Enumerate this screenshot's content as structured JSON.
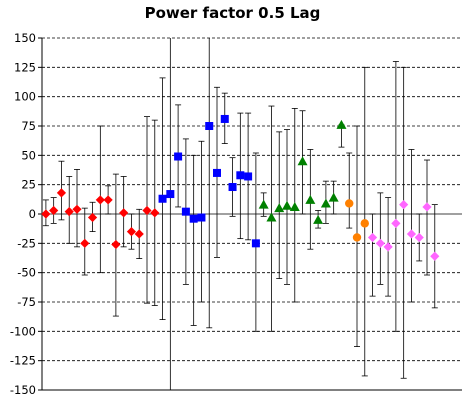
{
  "chart_data": {
    "type": "scatter",
    "title": "Power factor 0.5 Lag",
    "xlabel": "",
    "ylabel": "",
    "ylim": [
      -150,
      150
    ],
    "yticks": [
      150,
      125,
      100,
      75,
      50,
      25,
      0,
      -25,
      -50,
      -75,
      -100,
      -125,
      -150
    ],
    "xlim": [
      0.5,
      54.5
    ],
    "grid": {
      "horizontal": true,
      "style": "dashed",
      "color": "#000000"
    },
    "series": [
      {
        "marker": "diamond",
        "color": "#ff0000",
        "points": [
          {
            "x": 1,
            "y": 0,
            "lo": -10,
            "hi": 12
          },
          {
            "x": 2,
            "y": 3,
            "lo": -8,
            "hi": 14
          },
          {
            "x": 3,
            "y": 18,
            "lo": -5,
            "hi": 45
          },
          {
            "x": 4,
            "y": 2,
            "lo": -25,
            "hi": 32
          },
          {
            "x": 5,
            "y": 4,
            "lo": -28,
            "hi": 38
          },
          {
            "x": 6,
            "y": -25,
            "lo": -52,
            "hi": 5
          },
          {
            "x": 7,
            "y": -3,
            "lo": -15,
            "hi": 10
          },
          {
            "x": 8,
            "y": 12,
            "lo": -50,
            "hi": 75
          },
          {
            "x": 9,
            "y": 12,
            "lo": 0,
            "hi": 24
          },
          {
            "x": 10,
            "y": -26,
            "lo": -87,
            "hi": 34
          },
          {
            "x": 11,
            "y": 1,
            "lo": -28,
            "hi": 32
          },
          {
            "x": 12,
            "y": -15,
            "lo": -30,
            "hi": 0
          },
          {
            "x": 13,
            "y": -17,
            "lo": -38,
            "hi": 4
          },
          {
            "x": 14,
            "y": 3,
            "lo": -76,
            "hi": 83
          },
          {
            "x": 15,
            "y": 1,
            "lo": -78,
            "hi": 80
          }
        ]
      },
      {
        "marker": "square",
        "color": "#0000ff",
        "points": [
          {
            "x": 16,
            "y": 13,
            "lo": -90,
            "hi": 116
          },
          {
            "x": 17,
            "y": 17,
            "lo": -150,
            "hi": 150
          },
          {
            "x": 18,
            "y": 49,
            "lo": 6,
            "hi": 93
          },
          {
            "x": 19,
            "y": 2,
            "lo": -60,
            "hi": 64
          },
          {
            "x": 20,
            "y": -4,
            "lo": -95,
            "hi": 50
          },
          {
            "x": 21,
            "y": -3,
            "lo": -75,
            "hi": 62
          },
          {
            "x": 22,
            "y": 75,
            "lo": -97,
            "hi": 150
          },
          {
            "x": 23,
            "y": 35,
            "lo": -37,
            "hi": 108
          },
          {
            "x": 24,
            "y": 81,
            "lo": 60,
            "hi": 103
          },
          {
            "x": 25,
            "y": 23,
            "lo": -2,
            "hi": 48
          },
          {
            "x": 26,
            "y": 33,
            "lo": -21,
            "hi": 86
          },
          {
            "x": 27,
            "y": 32,
            "lo": -22,
            "hi": 86
          },
          {
            "x": 28,
            "y": -25,
            "lo": -100,
            "hi": 52
          }
        ]
      },
      {
        "marker": "triangle",
        "color": "#008000",
        "points": [
          {
            "x": 29,
            "y": 8,
            "lo": -2,
            "hi": 18
          },
          {
            "x": 30,
            "y": -3,
            "lo": -100,
            "hi": 92
          },
          {
            "x": 31,
            "y": 5,
            "lo": -55,
            "hi": 70
          },
          {
            "x": 32,
            "y": 7,
            "lo": -60,
            "hi": 72
          },
          {
            "x": 33,
            "y": 6,
            "lo": -75,
            "hi": 90
          },
          {
            "x": 34,
            "y": 45,
            "lo": 0,
            "hi": 88
          },
          {
            "x": 35,
            "y": 12,
            "lo": -30,
            "hi": 55
          },
          {
            "x": 36,
            "y": -5,
            "lo": -12,
            "hi": 3
          },
          {
            "x": 37,
            "y": 9,
            "lo": -8,
            "hi": 28
          },
          {
            "x": 38,
            "y": 14,
            "lo": 0,
            "hi": 28
          },
          {
            "x": 39,
            "y": 76,
            "lo": 57,
            "hi": 76
          }
        ]
      },
      {
        "marker": "circle",
        "color": "#ff8000",
        "points": [
          {
            "x": 40,
            "y": 9,
            "lo": -12,
            "hi": 52
          },
          {
            "x": 41,
            "y": -20,
            "lo": -113,
            "hi": 75
          },
          {
            "x": 42,
            "y": -8,
            "lo": -138,
            "hi": 125
          }
        ]
      },
      {
        "marker": "diamond",
        "color": "#ff66ff",
        "points": [
          {
            "x": 43,
            "y": -20,
            "lo": -70,
            "hi": 0
          },
          {
            "x": 44,
            "y": -25,
            "lo": -60,
            "hi": 18
          },
          {
            "x": 45,
            "y": -28,
            "lo": -70,
            "hi": 14
          },
          {
            "x": 46,
            "y": -8,
            "lo": -100,
            "hi": 130
          },
          {
            "x": 47,
            "y": 8,
            "lo": -140,
            "hi": 125
          },
          {
            "x": 48,
            "y": -17,
            "lo": -75,
            "hi": 55
          },
          {
            "x": 49,
            "y": -20,
            "lo": -40,
            "hi": 0
          },
          {
            "x": 50,
            "y": 6,
            "lo": -52,
            "hi": 46
          },
          {
            "x": 51,
            "y": -36,
            "lo": -80,
            "hi": 8
          }
        ]
      }
    ]
  }
}
